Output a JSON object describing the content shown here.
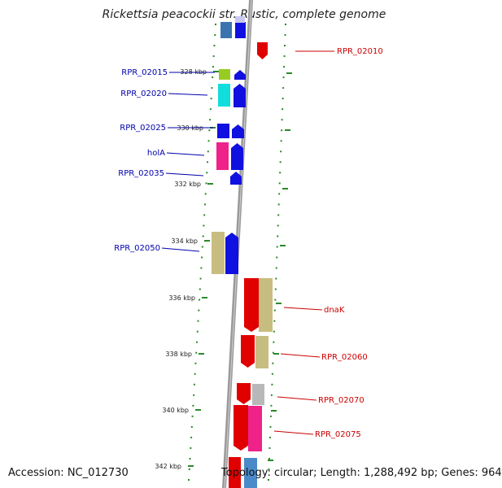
{
  "title": "Rickettsia peacockii str. Rustic, complete genome",
  "footer": {
    "accession": "Accession: NC_012730",
    "summary": "Topology: circular; Length: 1,288,492 bp; Genes: 964"
  },
  "colors": {
    "plus_label": "#0000aa",
    "minus_label": "#cc0000",
    "backbone": "#888888",
    "ticks": "#2a8a2a"
  },
  "ticks": [
    {
      "label": "328 kbp",
      "kbp": 328
    },
    {
      "label": "330 kbp",
      "kbp": 330
    },
    {
      "label": "332 kbp",
      "kbp": 332
    },
    {
      "label": "334 kbp",
      "kbp": 334
    },
    {
      "label": "336 kbp",
      "kbp": 336
    },
    {
      "label": "338 kbp",
      "kbp": 338
    },
    {
      "label": "340 kbp",
      "kbp": 340
    },
    {
      "label": "342 kbp",
      "kbp": 342
    }
  ],
  "gene_labels": [
    {
      "text": "RPR_02010",
      "strand": "minus"
    },
    {
      "text": "RPR_02015",
      "strand": "plus"
    },
    {
      "text": "RPR_02020",
      "strand": "plus"
    },
    {
      "text": "RPR_02025",
      "strand": "plus"
    },
    {
      "text": "holA",
      "strand": "plus"
    },
    {
      "text": "RPR_02035",
      "strand": "plus"
    },
    {
      "text": "RPR_02050",
      "strand": "plus"
    },
    {
      "text": "dnaK",
      "strand": "minus"
    },
    {
      "text": "RPR_02060",
      "strand": "minus"
    },
    {
      "text": "RPR_02070",
      "strand": "minus"
    },
    {
      "text": "RPR_02075",
      "strand": "minus"
    }
  ]
}
